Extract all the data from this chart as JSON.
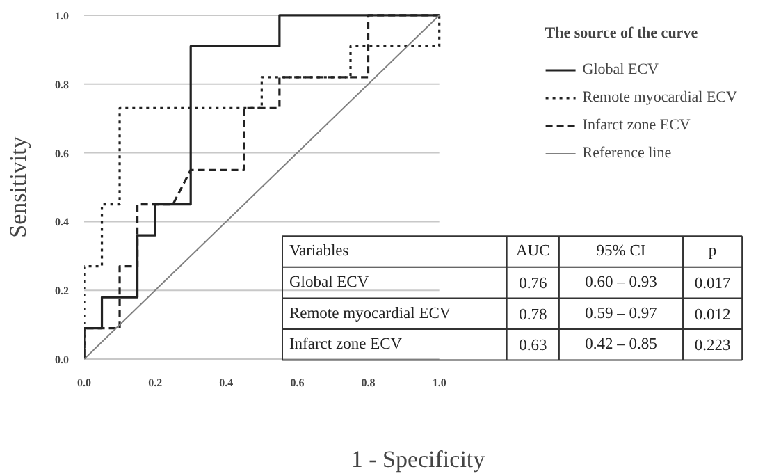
{
  "chart_data": {
    "type": "line",
    "xlabel": "1 - Specificity",
    "ylabel": "Sensitivity",
    "legend_title": "The source of the curve",
    "xlim": [
      0,
      1
    ],
    "ylim": [
      0,
      1
    ],
    "xticks": [
      {
        "value": 0,
        "label": "0.0"
      },
      {
        "value": 0.2,
        "label": "0.2"
      },
      {
        "value": 0.4,
        "label": "0.4"
      },
      {
        "value": 0.6,
        "label": "0.6"
      },
      {
        "value": 0.8,
        "label": "0.8"
      },
      {
        "value": 1,
        "label": "1.0"
      }
    ],
    "yticks": [
      {
        "value": 0,
        "label": "0.0"
      },
      {
        "value": 0.2,
        "label": "0.2"
      },
      {
        "value": 0.4,
        "label": "0.4"
      },
      {
        "value": 0.6,
        "label": "0.6"
      },
      {
        "value": 0.8,
        "label": "0.8"
      },
      {
        "value": 1,
        "label": "1.0"
      }
    ],
    "grid": "y",
    "legend": "right",
    "marker": "none",
    "series": [
      {
        "name": "Global ECV",
        "color": "#222222",
        "line_style": "solid",
        "x": [
          0,
          0,
          0.05,
          0.05,
          0.15,
          0.15,
          0.2,
          0.2,
          0.3,
          0.3,
          0.55,
          0.55,
          1
        ],
        "values": [
          0,
          0.09,
          0.09,
          0.18,
          0.18,
          0.36,
          0.36,
          0.45,
          0.45,
          0.91,
          0.91,
          1,
          1
        ]
      },
      {
        "name": "Remote myocardial ECV",
        "color": "#222222",
        "line_style": "dotted",
        "x": [
          0,
          0,
          0.05,
          0.05,
          0.1,
          0.1,
          0.5,
          0.5,
          0.75,
          0.75,
          1,
          1
        ],
        "values": [
          0,
          0.27,
          0.27,
          0.45,
          0.45,
          0.73,
          0.73,
          0.82,
          0.82,
          0.91,
          0.91,
          1
        ]
      },
      {
        "name": "Infarct zone ECV",
        "color": "#222222",
        "line_style": "dashed",
        "x": [
          0,
          0,
          0.1,
          0.1,
          0.15,
          0.15,
          0.25,
          0.3,
          0.45,
          0.45,
          0.55,
          0.55,
          0.8,
          0.8,
          1
        ],
        "values": [
          0,
          0.09,
          0.09,
          0.27,
          0.27,
          0.45,
          0.45,
          0.55,
          0.55,
          0.73,
          0.73,
          0.82,
          0.82,
          1,
          1
        ]
      },
      {
        "name": "Reference line",
        "color": "#808080",
        "line_style": "solid",
        "x": [
          0,
          1
        ],
        "values": [
          0,
          1
        ]
      }
    ],
    "annotations": [
      "Variables",
      "AUC",
      "95% CI",
      "p",
      "Global ECV",
      "0.76",
      "0.60 – 0.93",
      "0.017",
      "Remote myocardial ECV",
      "0.78",
      "0.59 – 0.97",
      "0.012",
      "Infarct zone ECV",
      "0.63",
      "0.42 – 0.85",
      "0.223"
    ]
  }
}
